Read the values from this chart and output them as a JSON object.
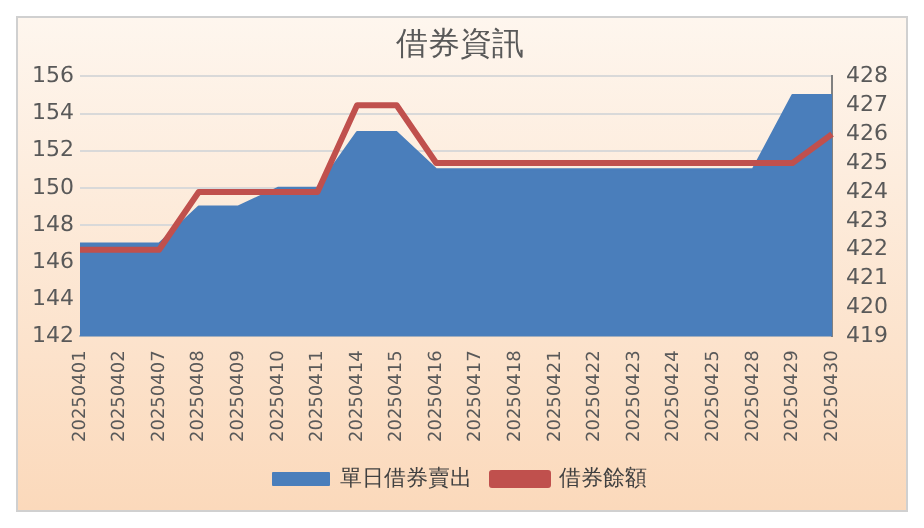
{
  "chart_data": {
    "type": "area",
    "title": "借券資訊",
    "categories": [
      "20250401",
      "20250402",
      "20250407",
      "20250408",
      "20250409",
      "20250410",
      "20250411",
      "20250414",
      "20250415",
      "20250416",
      "20250417",
      "20250418",
      "20250421",
      "20250422",
      "20250423",
      "20250424",
      "20250425",
      "20250428",
      "20250429",
      "20250430"
    ],
    "series": [
      {
        "name": "單日借券賣出",
        "color": "#4a7ebb",
        "values": [
          147,
          147,
          147,
          149,
          149,
          150,
          150,
          153,
          153,
          151,
          151,
          151,
          151,
          151,
          151,
          151,
          151,
          151,
          155,
          155
        ]
      },
      {
        "name": "借券餘額",
        "type": "line",
        "axis": "y2",
        "color": "#c0504d",
        "values": [
          422,
          422,
          422,
          424,
          424,
          424,
          424,
          427,
          427,
          425,
          425,
          425,
          425,
          425,
          425,
          425,
          425,
          425,
          425,
          426
        ]
      }
    ],
    "ylim": [
      142,
      156
    ],
    "yticks": [
      142,
      144,
      146,
      148,
      150,
      152,
      154,
      156
    ],
    "y2lim": [
      419,
      428
    ],
    "y2ticks": [
      419,
      420,
      421,
      422,
      423,
      424,
      425,
      426,
      427,
      428
    ],
    "grid": "y",
    "legend": "bottom",
    "marker": "none",
    "line_style": "solid"
  }
}
